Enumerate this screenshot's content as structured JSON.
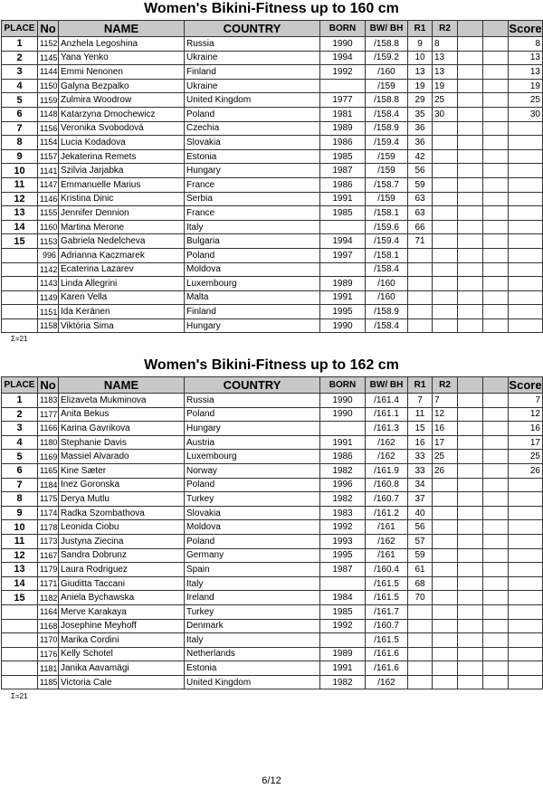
{
  "columns": [
    "PLACE",
    "No",
    "NAME",
    "COUNTRY",
    "BORN",
    "BW/ BH",
    "R1",
    "R2",
    "",
    "",
    "Score"
  ],
  "tables": [
    {
      "title": "Women's Bikini-Fitness up to 160 cm",
      "sum": "Σ=21",
      "rows": [
        [
          "1",
          "1152",
          "Anzhela Legoshina",
          "Russia",
          "1990",
          "/158.8",
          "9",
          "8",
          "",
          "",
          "8"
        ],
        [
          "2",
          "1145",
          "Yana Yenko",
          "Ukraine",
          "1994",
          "/159.2",
          "10",
          "13",
          "",
          "",
          "13"
        ],
        [
          "3",
          "1144",
          "Emmi Nenonen",
          "Finland",
          "1992",
          "/160",
          "13",
          "13",
          "",
          "",
          "13"
        ],
        [
          "4",
          "1150",
          "Galyna Bezpalko",
          "Ukraine",
          "",
          "/159",
          "19",
          "19",
          "",
          "",
          "19"
        ],
        [
          "5",
          "1159",
          "Zulmira Woodrow",
          "United Kingdom",
          "1977",
          "/158.8",
          "29",
          "25",
          "",
          "",
          "25"
        ],
        [
          "6",
          "1148",
          "Katarzyna Dmochewicz",
          "Poland",
          "1981",
          "/158.4",
          "35",
          "30",
          "",
          "",
          "30"
        ],
        [
          "7",
          "1156",
          "Veronika Svobodová",
          "Czechia",
          "1989",
          "/158.9",
          "36",
          "",
          "",
          "",
          ""
        ],
        [
          "8",
          "1154",
          "Lucia Kodadova",
          "Slovakia",
          "1986",
          "/159.4",
          "36",
          "",
          "",
          "",
          ""
        ],
        [
          "9",
          "1157",
          "Jekaterina Remets",
          "Estonia",
          "1985",
          "/159",
          "42",
          "",
          "",
          "",
          ""
        ],
        [
          "10",
          "1141",
          "Szilvia Jarjabka",
          "Hungary",
          "1987",
          "/159",
          "56",
          "",
          "",
          "",
          ""
        ],
        [
          "11",
          "1147",
          "Emmanuelle Marius",
          "France",
          "1986",
          "/158.7",
          "59",
          "",
          "",
          "",
          ""
        ],
        [
          "12",
          "1146",
          "Kristina Dinic",
          "Serbia",
          "1991",
          "/159",
          "63",
          "",
          "",
          "",
          ""
        ],
        [
          "13",
          "1155",
          "Jennifer Dennion",
          "France",
          "1985",
          "/158.1",
          "63",
          "",
          "",
          "",
          ""
        ],
        [
          "14",
          "1160",
          "Martina Merone",
          "Italy",
          "",
          "/159.6",
          "66",
          "",
          "",
          "",
          ""
        ],
        [
          "15",
          "1153",
          "Gabriela Nedelcheva",
          "Bulgaria",
          "1994",
          "/159.4",
          "71",
          "",
          "",
          "",
          ""
        ],
        [
          "",
          "996",
          "Adrianna Kaczmarek",
          "Poland",
          "1997",
          "/158.1",
          "",
          "",
          "",
          "",
          ""
        ],
        [
          "",
          "1142",
          "Ecaterina Lazarev",
          "Moldova",
          "",
          "/158.4",
          "",
          "",
          "",
          "",
          ""
        ],
        [
          "",
          "1143",
          "Linda Allegrini",
          "Luxembourg",
          "1989",
          "/160",
          "",
          "",
          "",
          "",
          ""
        ],
        [
          "",
          "1149",
          "Karen Vella",
          "Malta",
          "1991",
          "/160",
          "",
          "",
          "",
          "",
          ""
        ],
        [
          "",
          "1151",
          "Ida Keränen",
          "Finland",
          "1995",
          "/158.9",
          "",
          "",
          "",
          "",
          ""
        ],
        [
          "",
          "1158",
          "Viktória Sima",
          "Hungary",
          "1990",
          "/158.4",
          "",
          "",
          "",
          "",
          ""
        ]
      ]
    },
    {
      "title": "Women's Bikini-Fitness up to 162 cm",
      "sum": "Σ=21",
      "rows": [
        [
          "1",
          "1183",
          "Elizaveta Mukminova",
          "Russia",
          "1990",
          "/161.4",
          "7",
          "7",
          "",
          "",
          "7"
        ],
        [
          "2",
          "1177",
          "Anita Bekus",
          "Poland",
          "1990",
          "/161.1",
          "11",
          "12",
          "",
          "",
          "12"
        ],
        [
          "3",
          "1166",
          "Karina Gavrikova",
          "Hungary",
          "",
          "/161.3",
          "15",
          "16",
          "",
          "",
          "16"
        ],
        [
          "4",
          "1180",
          "Stephanie Davis",
          "Austria",
          "1991",
          "/162",
          "16",
          "17",
          "",
          "",
          "17"
        ],
        [
          "5",
          "1169",
          "Massiel Alvarado",
          "Luxembourg",
          "1986",
          "/162",
          "33",
          "25",
          "",
          "",
          "25"
        ],
        [
          "6",
          "1165",
          "Kine Sæter",
          "Norway",
          "1982",
          "/161.9",
          "33",
          "26",
          "",
          "",
          "26"
        ],
        [
          "7",
          "1184",
          "Inez Goronska",
          "Poland",
          "1996",
          "/160.8",
          "34",
          "",
          "",
          "",
          ""
        ],
        [
          "8",
          "1175",
          "Derya Mutlu",
          "Turkey",
          "1982",
          "/160.7",
          "37",
          "",
          "",
          "",
          ""
        ],
        [
          "9",
          "1174",
          "Radka Szombathova",
          "Slovakia",
          "1983",
          "/161.2",
          "40",
          "",
          "",
          "",
          ""
        ],
        [
          "10",
          "1178",
          "Leonida Ciobu",
          "Moldova",
          "1992",
          "/161",
          "56",
          "",
          "",
          "",
          ""
        ],
        [
          "11",
          "1173",
          "Justyna Ziecina",
          "Poland",
          "1993",
          "/162",
          "57",
          "",
          "",
          "",
          ""
        ],
        [
          "12",
          "1167",
          "Sandra Dobrunz",
          "Germany",
          "1995",
          "/161",
          "59",
          "",
          "",
          "",
          ""
        ],
        [
          "13",
          "1179",
          "Laura Rodriguez",
          "Spain",
          "1987",
          "/160.4",
          "61",
          "",
          "",
          "",
          ""
        ],
        [
          "14",
          "1171",
          "Giuditta Taccani",
          "Italy",
          "",
          "/161.5",
          "68",
          "",
          "",
          "",
          ""
        ],
        [
          "15",
          "1182",
          "Aniela Bychawska",
          "Ireland",
          "1984",
          "/161.5",
          "70",
          "",
          "",
          "",
          ""
        ],
        [
          "",
          "1164",
          "Merve Karakaya",
          "Turkey",
          "1985",
          "/161.7",
          "",
          "",
          "",
          "",
          ""
        ],
        [
          "",
          "1168",
          "Josephine Meyhoff",
          "Denmark",
          "1992",
          "/160.7",
          "",
          "",
          "",
          "",
          ""
        ],
        [
          "",
          "1170",
          "Marika Cordini",
          "Italy",
          "",
          "/161.5",
          "",
          "",
          "",
          "",
          ""
        ],
        [
          "",
          "1176",
          "Kelly Schotel",
          "Netherlands",
          "1989",
          "/161.6",
          "",
          "",
          "",
          "",
          ""
        ],
        [
          "",
          "1181",
          "Janika Aavamägi",
          "Estonia",
          "1991",
          "/161.6",
          "",
          "",
          "",
          "",
          ""
        ],
        [
          "",
          "1185",
          "Victoria Cale",
          "United Kingdom",
          "1982",
          "/162",
          "",
          "",
          "",
          "",
          ""
        ]
      ]
    }
  ],
  "page_number": "6/12"
}
